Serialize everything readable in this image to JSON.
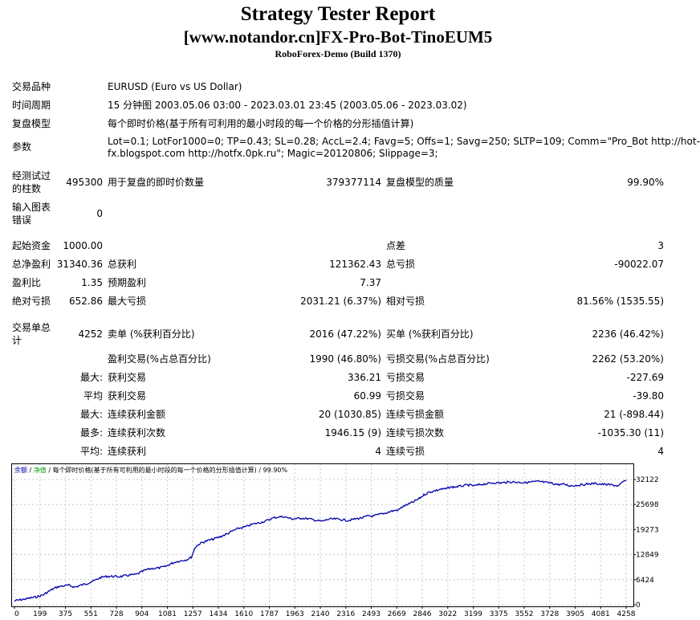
{
  "header": {
    "title": "Strategy Tester Report",
    "subtitle": "[www.notandor.cn]FX-Pro-Bot-TinoEUM5",
    "server": "RoboForex-Demo (Build 1370)"
  },
  "info": {
    "symbol_label": "交易品种",
    "symbol_value": "EURUSD (Euro vs US Dollar)",
    "period_label": "时间周期",
    "period_value": "15 分钟图 2003.05.06 03:00 - 2023.03.01 23:45 (2003.05.06 - 2023.03.02)",
    "model_label": "复盘模型",
    "model_value": "每个即时价格(基于所有可利用的最小时段的每一个价格的分形插值计算)",
    "params_label": "参数",
    "params_line1": "Lot=0.1; LotFor1000=0; TP=0.43; SL=0.28; AccL=2.4; Favg=5; Offs=1; Savg=250; SLTP=109; Comm=\"Pro_Bot http://hot-",
    "params_line2": "fx.blogspot.com http://hotfx.0pk.ru\"; Magic=20120806; Slippage=3;"
  },
  "bars": {
    "tested_label": "经测试过的柱数",
    "tested_value": "495300",
    "ticks_label": "用于复盘的即时价数量",
    "ticks_value": "379377114",
    "quality_label": "复盘模型的质量",
    "quality_value": "99.90%",
    "errors_label": "输入图表错误",
    "errors_value": "0"
  },
  "results": {
    "deposit_label": "起始资金",
    "deposit_value": "1000.00",
    "spread_label": "点差",
    "spread_value": "3",
    "net_label": "总净盈利",
    "net_value": "31340.36",
    "gross_profit_label": "总获利",
    "gross_profit_value": "121362.43",
    "gross_loss_label": "总亏损",
    "gross_loss_value": "-90022.07",
    "pf_label": "盈利比",
    "pf_value": "1.35",
    "payoff_label": "预期盈利",
    "payoff_value": "7.37",
    "abs_dd_label": "绝对亏损",
    "abs_dd_value": "652.86",
    "max_dd_label": "最大亏损",
    "max_dd_value": "2031.21 (6.37%)",
    "rel_dd_label": "相对亏损",
    "rel_dd_value": "81.56% (1535.55)"
  },
  "trades": {
    "total_label": "交易单总计",
    "total_value": "4252",
    "short_label": "卖单 (%获利百分比)",
    "short_value": "2016 (47.22%)",
    "long_label": "买单 (%获利百分比)",
    "long_value": "2236 (46.42%)",
    "profit_trades_label": "盈利交易(%占总百分比)",
    "profit_trades_value": "1990 (46.80%)",
    "loss_trades_label": "亏损交易(%占总百分比)",
    "loss_trades_value": "2262 (53.20%)",
    "max1_label": "最大:",
    "largest_profit_label": "获利交易",
    "largest_profit_value": "336.21",
    "largest_loss_label": "亏损交易",
    "largest_loss_value": "-227.69",
    "avg1_label": "平均",
    "avg_profit_label": "获利交易",
    "avg_profit_value": "60.99",
    "avg_loss_label": "亏损交易",
    "avg_loss_value": "-39.80",
    "max2_label": "最大:",
    "consec_wins_label": "连续获利金额",
    "consec_wins_value": "20 (1030.85)",
    "consec_losses_label": "连续亏损金额",
    "consec_losses_value": "21 (-898.44)",
    "max3_label": "最多:",
    "consec_profit_label": "连续获利次数",
    "consec_profit_value": "1946.15 (9)",
    "consec_loss_label": "连续亏损次数",
    "consec_loss_value": "-1035.30 (11)",
    "avg2_label": "平均:",
    "avg_consec_wins_label": "连续获利",
    "avg_consec_wins_value": "4",
    "avg_consec_losses_label": "连续亏损",
    "avg_consec_losses_value": "4"
  },
  "chart_data": {
    "type": "line",
    "legend": {
      "balance": "余额",
      "sep1": " / ",
      "equity": "净值",
      "sep2": " / ",
      "model": "每个即时价格(基于所有可利用的最小时段的每一个价格的分形插值计算)",
      "sep3": " / ",
      "quality": "99.90%"
    },
    "x_ticks": [
      "0",
      "199",
      "375",
      "551",
      "728",
      "904",
      "1081",
      "1257",
      "1434",
      "1610",
      "1787",
      "1963",
      "2140",
      "2316",
      "2493",
      "2669",
      "2846",
      "3022",
      "3199",
      "3375",
      "3552",
      "3728",
      "3905",
      "4081",
      "4258"
    ],
    "y_ticks": [
      "0",
      "6424",
      "12849",
      "19273",
      "25698",
      "32122"
    ],
    "xlim": [
      0,
      4252
    ],
    "ylim": [
      0,
      32122
    ],
    "colors": {
      "balance": "#0000aa",
      "equity": "#00a000",
      "grid": "#c8c8c8",
      "axis": "#000000"
    },
    "series": [
      {
        "name": "余额",
        "x": [
          0,
          80,
          150,
          199,
          250,
          300,
          375,
          420,
          460,
          500,
          551,
          600,
          650,
          728,
          800,
          850,
          904,
          950,
          1000,
          1050,
          1081,
          1120,
          1160,
          1200,
          1230,
          1257,
          1290,
          1330,
          1380,
          1434,
          1480,
          1520,
          1560,
          1610,
          1650,
          1700,
          1750,
          1787,
          1830,
          1870,
          1900,
          1930,
          1963,
          2000,
          2050,
          2100,
          2140,
          2180,
          2230,
          2280,
          2316,
          2370,
          2420,
          2460,
          2493,
          2540,
          2580,
          2620,
          2669,
          2700,
          2740,
          2780,
          2820,
          2846,
          2880,
          2920,
          2960,
          3000,
          3022,
          3060,
          3100,
          3150,
          3199,
          3250,
          3300,
          3340,
          3375,
          3420,
          3460,
          3500,
          3552,
          3600,
          3650,
          3700,
          3728,
          3780,
          3820,
          3860,
          3905,
          3950,
          4000,
          4040,
          4081,
          4120,
          4160,
          4200,
          4230,
          4252
        ],
        "y": [
          1000,
          1500,
          2000,
          2500,
          3700,
          4600,
          5000,
          4500,
          5000,
          5400,
          6100,
          7000,
          7300,
          7200,
          7600,
          7800,
          8800,
          9300,
          9400,
          9800,
          10400,
          11000,
          11300,
          11600,
          12200,
          14800,
          15700,
          16300,
          16800,
          17500,
          18200,
          19000,
          19600,
          20000,
          20600,
          21000,
          21500,
          22100,
          22500,
          22600,
          22300,
          22000,
          22100,
          22200,
          22000,
          21600,
          21400,
          21900,
          22000,
          21800,
          21600,
          22000,
          22300,
          22800,
          22700,
          23200,
          23500,
          24000,
          24300,
          25200,
          25800,
          26500,
          27400,
          28200,
          28800,
          29200,
          29600,
          29700,
          30100,
          30200,
          30400,
          30700,
          30500,
          30900,
          31100,
          31300,
          31200,
          31400,
          31500,
          31400,
          31300,
          31500,
          31600,
          31300,
          31200,
          30800,
          30900,
          30500,
          30600,
          30800,
          31000,
          31100,
          30900,
          30800,
          30700,
          30400,
          31500,
          32000
        ]
      }
    ]
  }
}
